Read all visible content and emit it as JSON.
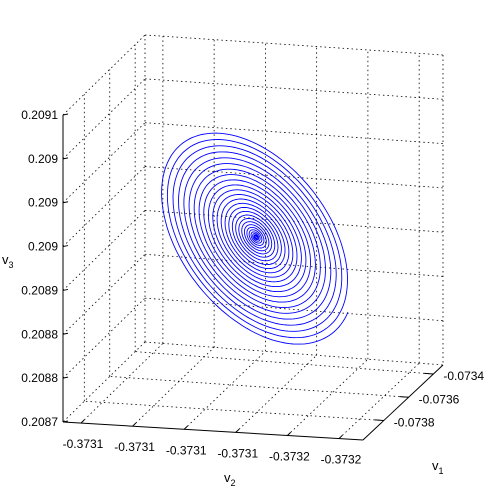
{
  "chart_data": {
    "type": "line",
    "view": "3d",
    "grid": true,
    "series_color": "#0000ff",
    "axes": {
      "x": {
        "label_main": "v",
        "label_sub": "2",
        "ticks": [
          "-0.3731",
          "-0.3731",
          "-0.3731",
          "-0.3731",
          "-0.3732",
          "-0.3732"
        ]
      },
      "y": {
        "label_main": "v",
        "label_sub": "1",
        "ticks": [
          "-0.0738",
          "-0.0736",
          "-0.0734"
        ]
      },
      "z": {
        "label_main": "v",
        "label_sub": "3",
        "ticks": [
          "0.2087",
          "0.2088",
          "0.2088",
          "0.2089",
          "0.209",
          "0.209",
          "0.209",
          "0.2091"
        ]
      }
    },
    "spiral": {
      "description_of_shape": "inward spiral converging to a fixed point",
      "turns": 26,
      "start_radius_fraction": 1.0,
      "center": {
        "v1": -0.07365,
        "v2": -0.37315,
        "v3": 0.20895
      }
    }
  }
}
